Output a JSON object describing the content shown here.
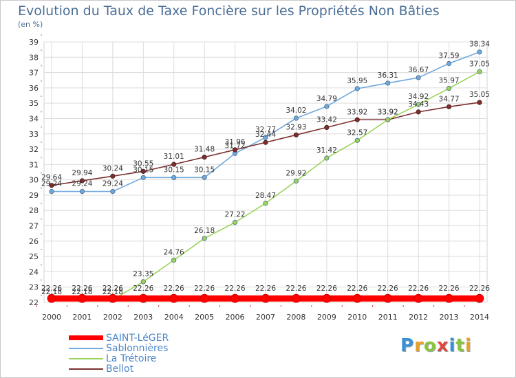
{
  "header": {
    "title": "Evolution du Taux de Taxe Foncière sur les Propriétés Non Bâties",
    "subtitle": "(en %)"
  },
  "brand": {
    "letters": [
      "P",
      "r",
      "o",
      "x",
      "i",
      "t",
      "i"
    ],
    "colors": [
      "#3b8fd6",
      "#e8a02a",
      "#8ac43f",
      "#e0463c",
      "#3b8fd6",
      "#8ac43f",
      "#e8a02a"
    ]
  },
  "chart_data": {
    "type": "line",
    "title": "Evolution du Taux de Taxe Foncière sur les Propriétés Non Bâties",
    "ylabel": "(en %)",
    "ylim": [
      22,
      39
    ],
    "yticks": [
      22,
      23,
      24,
      25,
      26,
      27,
      28,
      29,
      30,
      31,
      32,
      33,
      34,
      35,
      36,
      37,
      38,
      39
    ],
    "x": [
      "2000",
      "2001",
      "2002",
      "2003",
      "2004",
      "2005",
      "2006",
      "2007",
      "2008",
      "2009",
      "2010",
      "2011",
      "2012",
      "2013",
      "2014"
    ],
    "grid": true,
    "legend_position": "bottom-left",
    "series": [
      {
        "name": "SAINT-LéGER",
        "color": "#ff0000",
        "values": [
          22.26,
          22.26,
          22.26,
          22.26,
          22.26,
          22.26,
          22.26,
          22.26,
          22.26,
          22.26,
          22.26,
          22.26,
          22.26,
          22.26,
          22.26
        ],
        "labels": [
          "22.26",
          "22.26",
          "22.26",
          "22.26",
          "22.26",
          "22.26",
          "22.26",
          "22.26",
          "22.26",
          "22.26",
          "22.26",
          "22.26",
          "22.26",
          "22.26",
          "22.26"
        ]
      },
      {
        "name": "Sablonnières",
        "color": "#6fa8dc",
        "values": [
          29.24,
          29.24,
          29.24,
          30.15,
          30.15,
          30.15,
          31.72,
          32.77,
          34.02,
          34.79,
          35.95,
          36.31,
          36.67,
          37.59,
          38.34
        ],
        "labels": [
          "29.24",
          "29.24",
          "29.24",
          "30.15",
          "30.15",
          "30.15",
          "31.72",
          "32.77",
          "34.02",
          "34.79",
          "35.95",
          "36.31",
          "36.67",
          "37.59",
          "38.34"
        ]
      },
      {
        "name": "La Trétoire",
        "color": "#9bd35a",
        "values": [
          22.18,
          22.18,
          22.18,
          23.35,
          24.76,
          26.18,
          27.22,
          28.47,
          29.92,
          31.42,
          32.57,
          33.92,
          34.92,
          35.97,
          37.05
        ],
        "labels": [
          "22.18",
          "22.18",
          "22.18",
          "23.35",
          "24.76",
          "26.18",
          "27.22",
          "28.47",
          "29.92",
          "31.42",
          "32.57",
          "33.92",
          "34.92",
          "35.97",
          "37.05"
        ]
      },
      {
        "name": "Bellot",
        "color": "#7b2f2f",
        "values": [
          29.64,
          29.94,
          30.24,
          30.55,
          31.01,
          31.48,
          31.96,
          32.44,
          32.93,
          33.42,
          33.92,
          33.92,
          34.43,
          34.77,
          35.05
        ],
        "labels": [
          "29.64",
          "29.94",
          "30.24",
          "30.55",
          "31.01",
          "31.48",
          "31.96",
          "32.44",
          "32.93",
          "33.42",
          "33.92",
          "33.92",
          "34.43",
          "34.77",
          "35.05"
        ]
      }
    ]
  }
}
